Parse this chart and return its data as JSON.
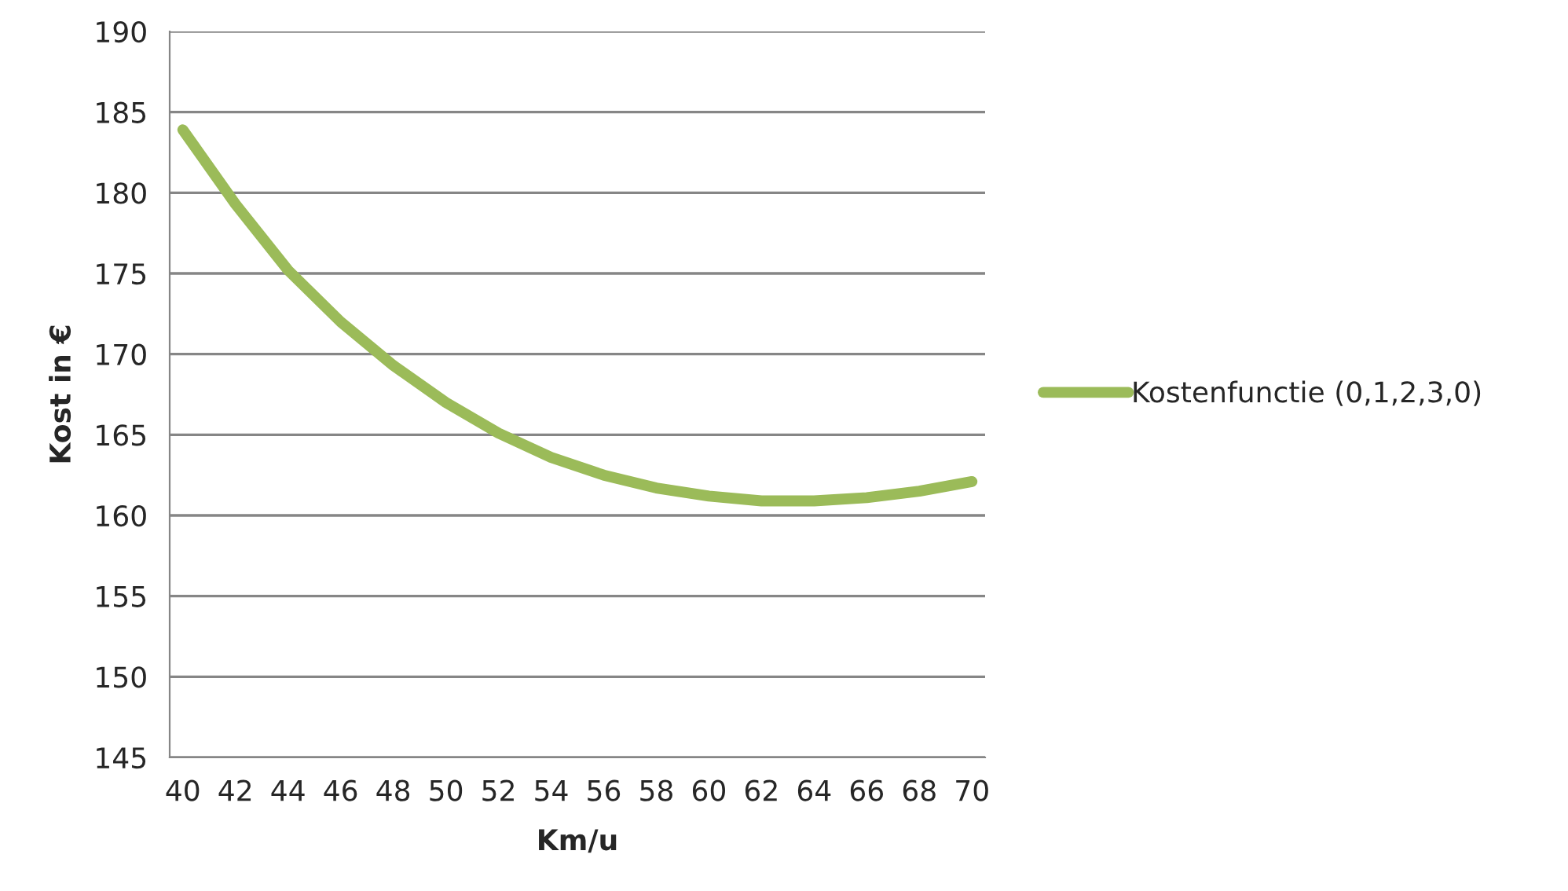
{
  "chart_data": {
    "type": "line",
    "xlabel": "Km/u",
    "ylabel": "Kost in €",
    "x": [
      40,
      42,
      44,
      46,
      48,
      50,
      52,
      54,
      56,
      58,
      60,
      62,
      64,
      66,
      68,
      70
    ],
    "series": [
      {
        "name": "Kostenfunctie (0,1,2,3,0)",
        "color": "#9bbb59",
        "values": [
          183.9,
          179.3,
          175.2,
          172.0,
          169.3,
          167.0,
          165.1,
          163.6,
          162.5,
          161.7,
          161.2,
          160.9,
          160.9,
          161.1,
          161.5,
          162.1
        ]
      }
    ],
    "xlim": [
      39.5,
      70.5
    ],
    "xticks": [
      40,
      42,
      44,
      46,
      48,
      50,
      52,
      54,
      56,
      58,
      60,
      62,
      64,
      66,
      68,
      70
    ],
    "ylim": [
      145,
      190
    ],
    "yticks": [
      145,
      150,
      155,
      160,
      165,
      170,
      175,
      180,
      185,
      190
    ],
    "grid": "y",
    "legend": "right",
    "marker": "none",
    "line_style": "solid"
  }
}
